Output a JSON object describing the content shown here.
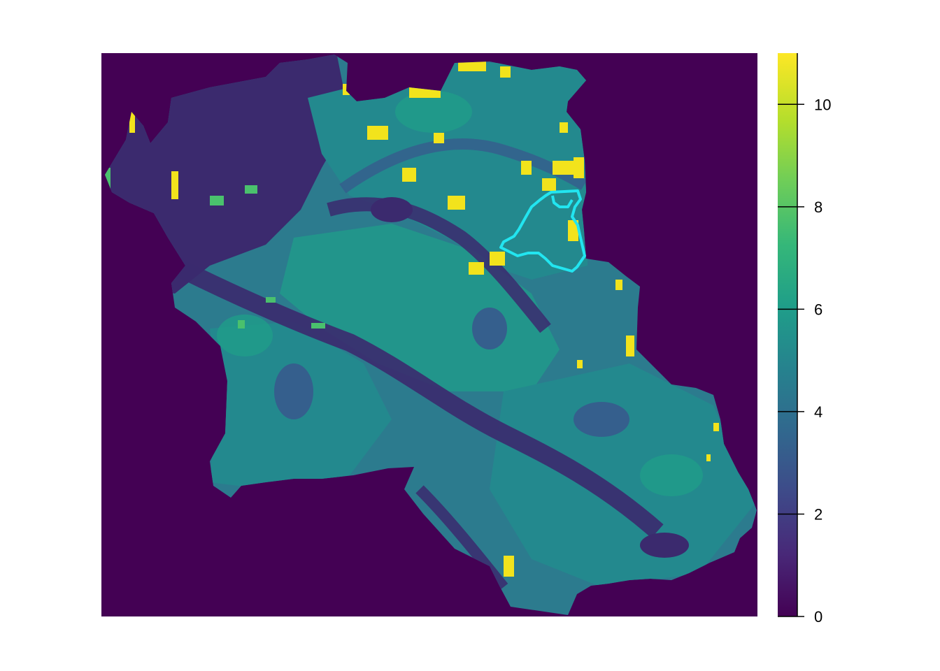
{
  "map": {
    "background_color": "#440154",
    "boundary_color": "#22E5F0",
    "fill_classes": {
      "dark_purple": "#3B2A6E",
      "blue": "#355F8D",
      "teal_blue": "#2C7B8E",
      "teal": "#23898E",
      "green_teal": "#1F9E89",
      "green": "#4AC16D",
      "yellow": "#F2E31C"
    }
  },
  "legend": {
    "range": [
      0,
      11
    ],
    "ticks": [
      {
        "value": 0,
        "label": "0"
      },
      {
        "value": 2,
        "label": "2"
      },
      {
        "value": 4,
        "label": "4"
      },
      {
        "value": 6,
        "label": "6"
      },
      {
        "value": 8,
        "label": "8"
      },
      {
        "value": 10,
        "label": "10"
      }
    ],
    "palette": [
      "#440154",
      "#482878",
      "#3E4A89",
      "#31688E",
      "#26828E",
      "#1F9E89",
      "#35B779",
      "#6DCD59",
      "#B4DE2C",
      "#FDE725"
    ]
  }
}
